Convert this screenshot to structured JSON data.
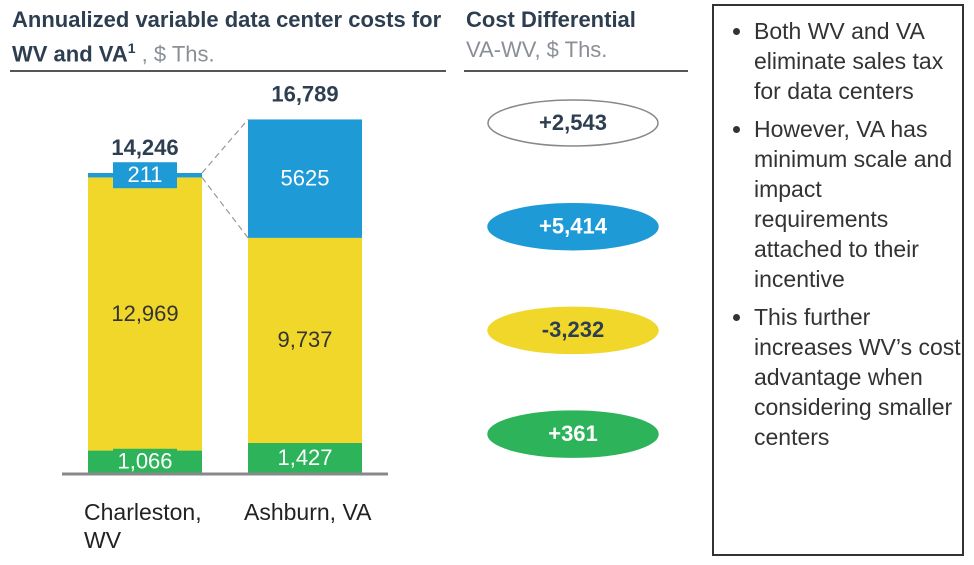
{
  "chart_data": {
    "type": "stacked_bar",
    "title": "Annualized variable data center costs for WV and VA",
    "title_footnote": "1",
    "unit": ", $ Ths.",
    "categories": [
      "Charleston, WV",
      "Ashburn, VA"
    ],
    "ylim": [
      0,
      17000
    ],
    "series": [
      {
        "color": "#2db35a",
        "values": [
          1066,
          1427
        ],
        "value_labels": [
          "1,066",
          "1,427"
        ]
      },
      {
        "color": "#f0d72a",
        "values": [
          12969,
          9737
        ],
        "value_labels": [
          "12,969",
          "9,737"
        ]
      },
      {
        "color": "#1e9ad6",
        "values": [
          211,
          5625
        ]
      }
    ],
    "totals": [
      14246,
      16789
    ],
    "total_labels": [
      "14,246",
      "16,789"
    ],
    "differential": {
      "title": "Cost Differential",
      "subtitle": "VA-WV, $ Ths.",
      "values": [
        2543,
        5414,
        -3232,
        361
      ],
      "value_labels": [
        "+2,543",
        "+5,414",
        "-3,232",
        "+361"
      ],
      "colors": [
        "#ffffff",
        "#1e9ad6",
        "#f0d72a",
        "#2db35a"
      ]
    },
    "notes": [
      "Both WV and VA eliminate sales tax for data centers",
      "However, VA has minimum scale and impact requirements attached to their incentive",
      "This further increases WV’s cost advantage when considering smaller centers"
    ]
  }
}
